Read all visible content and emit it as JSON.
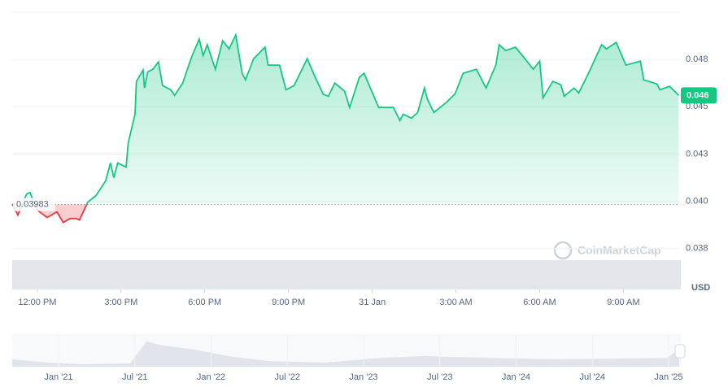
{
  "chart_data": {
    "type": "line",
    "series": [
      {
        "name": null,
        "up_color": "#16c784",
        "down_color": "#ea3943",
        "x": [
          -0.9,
          -0.7,
          -0.38,
          -0.26,
          -0.03,
          0.35,
          0.7,
          0.93,
          1.17,
          1.4,
          1.51,
          1.81,
          2.1,
          2.45,
          2.62,
          2.74,
          2.88,
          3.18,
          3.26,
          3.5,
          3.55,
          3.79,
          3.84,
          3.96,
          4.14,
          4.34,
          4.49,
          4.78,
          4.92,
          5.21,
          5.53,
          5.8,
          5.94,
          6.09,
          6.38,
          6.64,
          6.87,
          7.11,
          7.34,
          7.46,
          7.75,
          8.16,
          8.27,
          8.68,
          8.91,
          9.2,
          9.67,
          9.96,
          10.25,
          10.43,
          10.66,
          11.01,
          11.19,
          11.54,
          11.71,
          12.23,
          12.76,
          12.99,
          13.11,
          13.4,
          13.63,
          13.87,
          13.98,
          14.21,
          14.68,
          14.97,
          15.26,
          15.73,
          16.08,
          16.43,
          16.55,
          16.78,
          17.13,
          17.42,
          17.77,
          18.0,
          18.12,
          18.47,
          18.76,
          18.88,
          19.23,
          19.4,
          19.75,
          20.22,
          20.39,
          20.74,
          21.09,
          21.61,
          21.73,
          22.2,
          22.31,
          22.66,
          22.98
        ],
        "values": [
          0.03987,
          0.03927,
          0.04039,
          0.04047,
          0.03957,
          0.03914,
          0.03944,
          0.03888,
          0.03909,
          0.03909,
          0.03901,
          0.03996,
          0.0403,
          0.04108,
          0.04203,
          0.04125,
          0.04203,
          0.04181,
          0.0431,
          0.04461,
          0.04634,
          0.04694,
          0.04599,
          0.04685,
          0.04698,
          0.04737,
          0.04612,
          0.0459,
          0.0456,
          0.04625,
          0.04763,
          0.04858,
          0.04771,
          0.04828,
          0.04698,
          0.04849,
          0.04806,
          0.04879,
          0.04677,
          0.04642,
          0.04754,
          0.04815,
          0.0472,
          0.0472,
          0.0459,
          0.04612,
          0.04754,
          0.04655,
          0.04565,
          0.04556,
          0.04625,
          0.04582,
          0.04496,
          0.04655,
          0.04677,
          0.04496,
          0.04496,
          0.04427,
          0.04461,
          0.0444,
          0.0447,
          0.04599,
          0.04539,
          0.0447,
          0.04526,
          0.04569,
          0.04677,
          0.04698,
          0.04599,
          0.0472,
          0.04828,
          0.04797,
          0.04815,
          0.04763,
          0.04698,
          0.04741,
          0.04547,
          0.04634,
          0.04616,
          0.04556,
          0.04599,
          0.04573,
          0.04677,
          0.04828,
          0.04806,
          0.0484,
          0.0472,
          0.04741,
          0.04642,
          0.04621,
          0.0459,
          0.04608,
          0.0456
        ]
      }
    ],
    "reference": 0.03983,
    "current_price": {
      "value": 0.0456,
      "label": "0.046"
    },
    "xlim": [
      -0.9,
      23.0
    ],
    "xticks": [
      {
        "value": 0,
        "label": "12:00 PM"
      },
      {
        "value": 3,
        "label": "3:00 PM"
      },
      {
        "value": 6,
        "label": "6:00 PM"
      },
      {
        "value": 9,
        "label": "9:00 PM"
      },
      {
        "value": 12,
        "label": "31 Jan"
      },
      {
        "value": 15,
        "label": "3:00 AM"
      },
      {
        "value": 18,
        "label": "6:00 AM"
      },
      {
        "value": 21,
        "label": "9:00 AM"
      }
    ],
    "ylim": [
      0.03534,
      0.05
    ],
    "yticks": [
      {
        "value": 0.0375,
        "label": "0.038"
      },
      {
        "value": 0.04,
        "label": "0.040"
      },
      {
        "value": 0.0425,
        "label": "0.043"
      },
      {
        "value": 0.045,
        "label": "0.045"
      },
      {
        "value": 0.0475,
        "label": "0.048"
      }
    ],
    "grid": true,
    "currency": "USD",
    "watermark": "CoinMarketCap",
    "navigator": {
      "categories": [
        "Jan '21",
        "Jul '21",
        "Jan '22",
        "Jul '22",
        "Jan '23",
        "Jul '23",
        "Jan '24",
        "Jul '24",
        "Jan '25"
      ]
    }
  }
}
